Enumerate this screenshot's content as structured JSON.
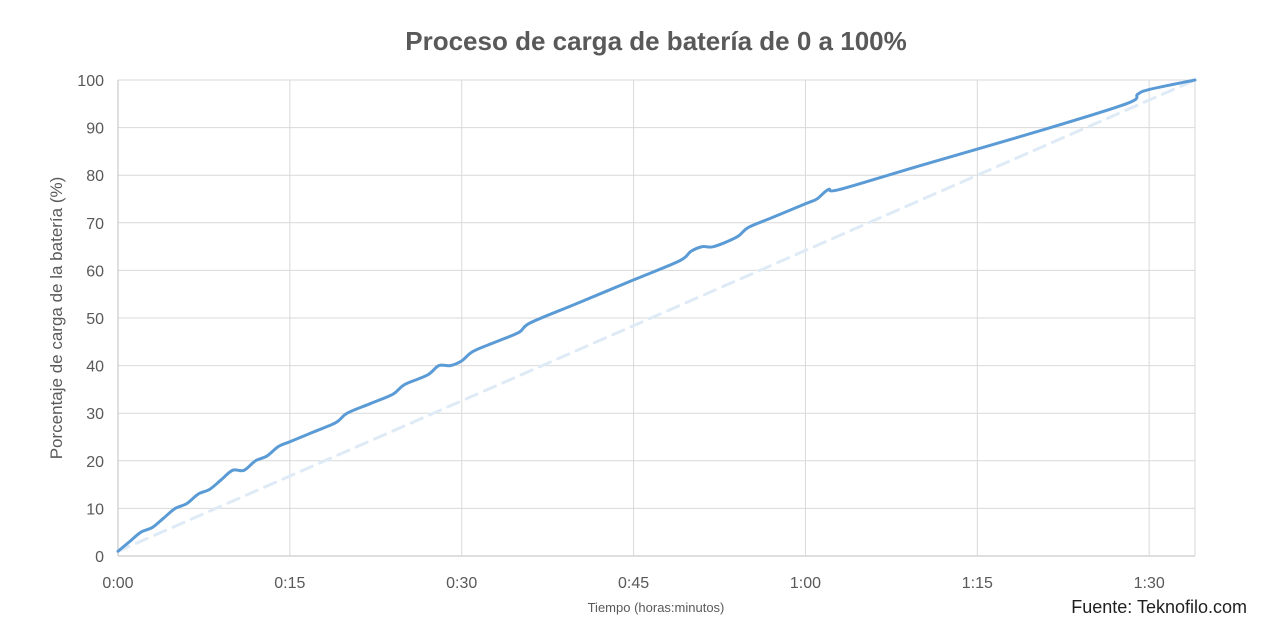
{
  "chart_data": {
    "type": "line",
    "title": "Proceso de carga de batería de 0 a 100%",
    "xlabel": "Tiempo (horas:minutos)",
    "ylabel": "Porcentaje de carga de la batería (%)",
    "xlim": [
      0,
      94
    ],
    "ylim": [
      0,
      100
    ],
    "x_ticks": [
      {
        "value": 0,
        "label": "0:00"
      },
      {
        "value": 15,
        "label": "0:15"
      },
      {
        "value": 30,
        "label": "0:30"
      },
      {
        "value": 45,
        "label": "0:45"
      },
      {
        "value": 60,
        "label": "1:00"
      },
      {
        "value": 75,
        "label": "1:15"
      },
      {
        "value": 90,
        "label": "1:30"
      }
    ],
    "y_ticks": [
      0,
      10,
      20,
      30,
      40,
      50,
      60,
      70,
      80,
      90,
      100
    ],
    "grid": true,
    "legend": "none",
    "series": [
      {
        "style": "solid",
        "color": "#5B9BD5",
        "x": [
          0,
          1,
          2,
          3,
          4,
          5,
          6,
          7,
          8,
          9,
          10,
          11,
          12,
          13,
          14,
          15,
          17,
          19,
          20,
          22,
          24,
          25,
          27,
          28,
          29,
          30,
          31,
          33,
          35,
          36,
          40,
          45,
          49,
          50,
          51,
          52,
          54,
          55,
          57,
          60,
          61,
          62,
          63,
          70,
          80,
          88,
          89,
          90,
          94
        ],
        "y": [
          1,
          3,
          5,
          6,
          8,
          10,
          11,
          13,
          14,
          16,
          18,
          18,
          20,
          21,
          23,
          24,
          26,
          28,
          30,
          32,
          34,
          36,
          38,
          40,
          40,
          41,
          43,
          45,
          47,
          49,
          53,
          58,
          62,
          64,
          65,
          65,
          67,
          69,
          71,
          74,
          75,
          77,
          77,
          82,
          89,
          95,
          97,
          98,
          100
        ]
      },
      {
        "style": "dashed",
        "color": "#DEEBF7",
        "x": [
          0,
          94
        ],
        "y": [
          1,
          100
        ]
      }
    ]
  },
  "source": "Fuente: Teknofilo.com"
}
